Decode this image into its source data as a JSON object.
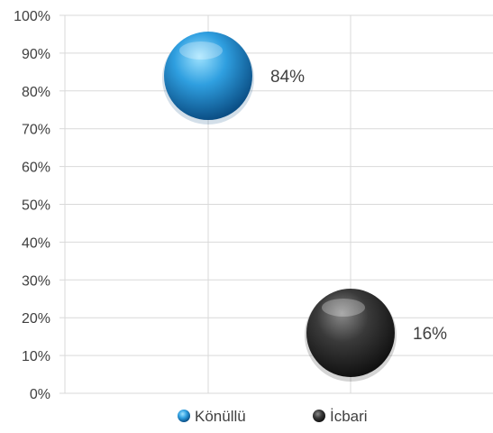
{
  "chart_data": {
    "type": "bubble",
    "title": "",
    "xlabel": "",
    "ylabel": "",
    "ylim": [
      0,
      100
    ],
    "y_tick_step": 10,
    "y_tick_format": "percent",
    "grid": true,
    "legend_position": "bottom",
    "series": [
      {
        "name": "Könüllü",
        "x": 1,
        "value": 84,
        "label": "84%",
        "color": "#2f9fe0",
        "highlight": "#9fe3ff",
        "shade": "#0b4f86"
      },
      {
        "name": "İcbari",
        "x": 2,
        "value": 16,
        "label": "16%",
        "color": "#3a3a3a",
        "highlight": "#8a8a8a",
        "shade": "#111111"
      }
    ]
  }
}
